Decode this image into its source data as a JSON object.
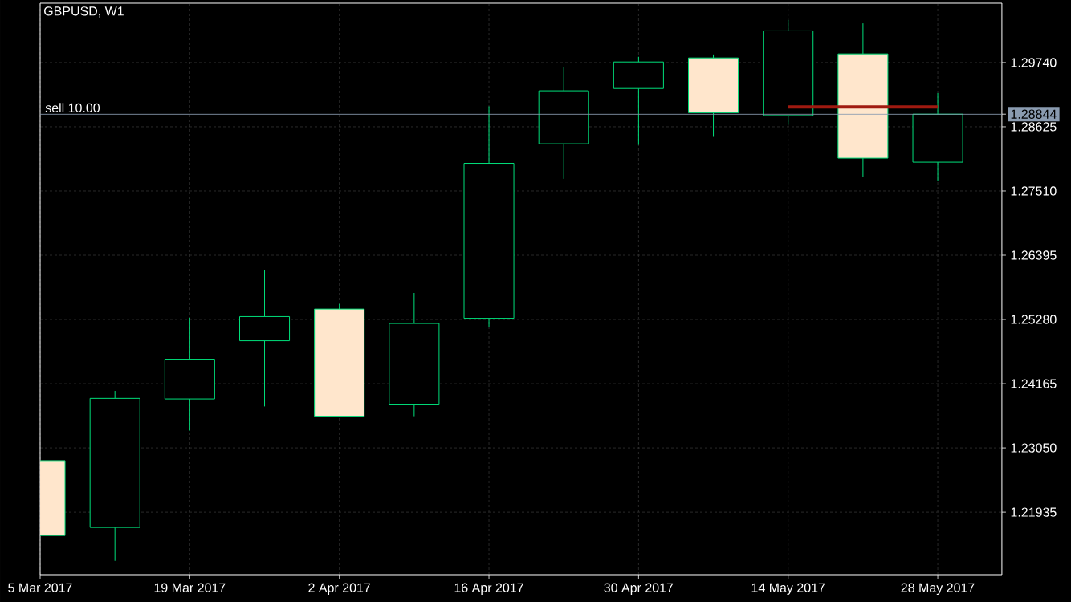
{
  "chart_data": {
    "type": "candlestick",
    "title": "GBPUSD, W1",
    "x": [
      "2017-03-05",
      "2017-03-12",
      "2017-03-19",
      "2017-03-26",
      "2017-04-02",
      "2017-04-09",
      "2017-04-16",
      "2017-04-23",
      "2017-04-30",
      "2017-05-07",
      "2017-05-14",
      "2017-05-21",
      "2017-05-28"
    ],
    "ohlc": [
      [
        1.2283,
        1.2283,
        1.2153,
        1.2153
      ],
      [
        1.2167,
        1.2404,
        1.2109,
        1.2391
      ],
      [
        1.239,
        1.2531,
        1.2335,
        1.2459
      ],
      [
        1.2491,
        1.2614,
        1.2377,
        1.2533
      ],
      [
        1.2546,
        1.2555,
        1.2359,
        1.236
      ],
      [
        1.2381,
        1.2574,
        1.236,
        1.2521
      ],
      [
        1.253,
        1.2898,
        1.2515,
        1.2799
      ],
      [
        1.2833,
        1.2966,
        1.2772,
        1.2925
      ],
      [
        1.2929,
        1.2984,
        1.2831,
        1.2975
      ],
      [
        1.2982,
        1.2988,
        1.2845,
        1.2887
      ],
      [
        1.2882,
        1.3048,
        1.2866,
        1.3029
      ],
      [
        1.2989,
        1.3042,
        1.2775,
        1.2808
      ],
      [
        1.2801,
        1.2921,
        1.2768,
        1.28844
      ]
    ],
    "color": "#00e07a",
    "colors": [
      "#ffe6cc",
      "#000000",
      "#000000",
      "#000000",
      "#ffe6cc",
      "#000000",
      "#000000",
      "#000000",
      "#000000",
      "#ffe6cc",
      "#000000",
      "#ffe6cc",
      "#000000"
    ],
    "series": [
      {
        "type": "line",
        "x": [
          "2017-05-14",
          "2017-05-28"
        ],
        "values": [
          1.2897,
          1.2897
        ],
        "color": "#a01a10"
      }
    ],
    "xlim": [
      "2017-03-05",
      "2017-06-03"
    ],
    "ylim": [
      1.2085,
      1.3077
    ],
    "xticks": [
      {
        "value": "2017-03-05",
        "label": "5 Mar 2017"
      },
      {
        "value": "2017-03-19",
        "label": "19 Mar 2017"
      },
      {
        "value": "2017-04-02",
        "label": "2 Apr 2017"
      },
      {
        "value": "2017-04-16",
        "label": "16 Apr 2017"
      },
      {
        "value": "2017-04-30",
        "label": "30 Apr 2017"
      },
      {
        "value": "2017-05-14",
        "label": "14 May 2017"
      },
      {
        "value": "2017-05-28",
        "label": "28 May 2017"
      }
    ],
    "yticks": [
      {
        "value": 1.2974,
        "label": "1.29740"
      },
      {
        "value": 1.28844,
        "label": "1.28844"
      },
      {
        "value": 1.28625,
        "label": "1.28625"
      },
      {
        "value": 1.2751,
        "label": "1.27510"
      },
      {
        "value": 1.26395,
        "label": "1.26395"
      },
      {
        "value": 1.2528,
        "label": "1.25280"
      },
      {
        "value": 1.24165,
        "label": "1.24165"
      },
      {
        "value": 1.2305,
        "label": "1.23050"
      },
      {
        "value": 1.21935,
        "label": "1.21935"
      }
    ],
    "ref_lines": [
      {
        "axis": "y",
        "value": 1.28844,
        "label": "sell 10.00",
        "color": "#8a9bb0"
      }
    ],
    "grid": true
  }
}
